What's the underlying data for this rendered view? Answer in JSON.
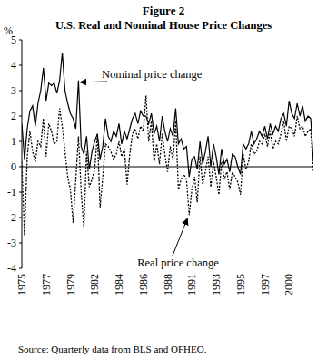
{
  "chart_data": {
    "type": "line",
    "title": "Figure 2",
    "subtitle": "U.S. Real and Nominal House Price Changes",
    "y_label": "%",
    "source": "Source: Quarterly data from BLS and OFHEO.",
    "grid": false,
    "ylim": [
      -4,
      5
    ],
    "yticks": [
      -4,
      -3,
      -2,
      -1,
      0,
      1,
      2,
      3,
      4,
      5
    ],
    "categories": [
      "1975",
      null,
      null,
      null,
      null,
      null,
      null,
      null,
      null,
      "1977",
      null,
      null,
      null,
      null,
      null,
      null,
      null,
      null,
      "1979",
      null,
      null,
      null,
      null,
      null,
      null,
      null,
      null,
      "1982",
      null,
      null,
      null,
      null,
      null,
      null,
      null,
      null,
      "1984",
      null,
      null,
      null,
      null,
      null,
      null,
      null,
      null,
      "1986",
      null,
      null,
      null,
      null,
      null,
      null,
      null,
      null,
      "1988",
      null,
      null,
      null,
      null,
      null,
      null,
      null,
      null,
      "1991",
      null,
      null,
      null,
      null,
      null,
      null,
      null,
      null,
      "1993",
      null,
      null,
      null,
      null,
      null,
      null,
      null,
      null,
      "1995",
      null,
      null,
      null,
      null,
      null,
      null,
      null,
      null,
      "1997",
      null,
      null,
      null,
      null,
      null,
      null,
      null,
      null,
      "2000",
      null,
      null,
      null,
      null,
      null,
      null,
      null,
      null,
      null
    ],
    "series": [
      {
        "name": "Nominal price change",
        "color": "#000000",
        "line_style": "solid",
        "values": [
          1.7,
          0.3,
          1.5,
          2.2,
          2.4,
          1.6,
          2.5,
          3.0,
          3.9,
          2.6,
          3.3,
          3.2,
          3.3,
          2.9,
          3.4,
          4.5,
          3.0,
          2.5,
          2.1,
          1.9,
          1.5,
          3.4,
          0.8,
          0.5,
          1.2,
          -0.1,
          0.6,
          1.0,
          1.3,
          0.3,
          0.8,
          1.9,
          1.2,
          1.0,
          1.4,
          1.2,
          1.7,
          0.9,
          1.4,
          1.1,
          1.5,
          1.9,
          2.1,
          1.7,
          2.2,
          2.0,
          2.0,
          1.7,
          2.1,
          1.3,
          1.6,
          1.0,
          2.0,
          1.4,
          1.0,
          1.5,
          1.2,
          2.3,
          0.9,
          1.1,
          0.7,
          0.8,
          -0.4,
          0.3,
          0.4,
          -0.1,
          1.0,
          0.1,
          0.6,
          1.2,
          0.0,
          0.9,
          0.4,
          -0.3,
          0.7,
          0.1,
          0.3,
          -0.2,
          0.5,
          0.4,
          0.0,
          -0.3,
          0.9,
          0.7,
          0.9,
          1.4,
          0.9,
          1.1,
          1.4,
          1.2,
          1.6,
          1.1,
          1.7,
          1.3,
          1.6,
          1.4,
          1.9,
          2.1,
          1.6,
          2.6,
          2.1,
          1.9,
          2.5,
          2.0,
          2.4,
          1.8,
          2.0,
          1.9,
          0.2
        ]
      },
      {
        "name": "Real price change",
        "color": "#000000",
        "line_style": "dotted",
        "values": [
          0.2,
          -2.7,
          0.4,
          1.4,
          0.6,
          0.2,
          1.0,
          0.8,
          1.9,
          0.4,
          1.7,
          1.4,
          0.9,
          1.0,
          2.3,
          1.6,
          0.6,
          -0.4,
          -0.9,
          -2.2,
          -0.5,
          1.2,
          -1.0,
          -2.4,
          0.6,
          -0.8,
          -0.5,
          -0.1,
          1.3,
          -1.6,
          -0.4,
          0.9,
          0.8,
          0.6,
          0.3,
          0.5,
          1.0,
          0.4,
          0.7,
          -0.7,
          0.5,
          1.3,
          1.5,
          1.1,
          1.6,
          1.4,
          2.8,
          1.0,
          1.8,
          0.2,
          0.9,
          0.1,
          1.3,
          0.5,
          -0.2,
          0.8,
          0.3,
          1.8,
          -0.9,
          -0.5,
          -0.3,
          -0.5,
          -1.9,
          -0.9,
          -0.4,
          -1.4,
          0.4,
          -0.7,
          -0.2,
          0.4,
          -0.8,
          0.2,
          -0.4,
          -1.1,
          0.2,
          -0.5,
          -0.2,
          -0.9,
          -0.2,
          -0.4,
          -0.6,
          -1.1,
          0.5,
          -0.1,
          0.2,
          0.9,
          0.5,
          0.6,
          1.0,
          0.9,
          1.3,
          0.8,
          1.4,
          0.7,
          1.0,
          0.9,
          1.3,
          1.8,
          1.0,
          1.6,
          1.5,
          1.2,
          2.0,
          1.5,
          1.6,
          1.2,
          1.4,
          1.5,
          -0.2
        ]
      }
    ]
  }
}
